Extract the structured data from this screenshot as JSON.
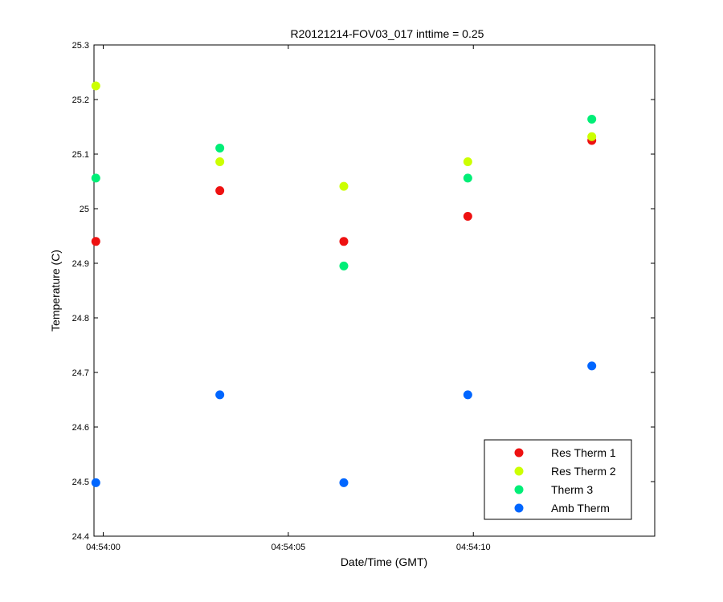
{
  "chart_data": {
    "type": "scatter",
    "title": "R20121214-FOV03_017 inttime = 0.25",
    "xlabel": "Date/Time (GMT)",
    "ylabel": "Temperature (C)",
    "xlim": [
      "04:53:59.75",
      "04:54:14.9"
    ],
    "ylim": [
      24.4,
      25.3
    ],
    "xticks": [
      {
        "value": "04:54:00",
        "label": "04:54:00"
      },
      {
        "value": "04:54:05",
        "label": "04:54:05"
      },
      {
        "value": "04:54:10",
        "label": "04:54:10"
      }
    ],
    "yticks": [
      {
        "value": 24.4,
        "label": "24.4"
      },
      {
        "value": 24.5,
        "label": "24.5"
      },
      {
        "value": 24.6,
        "label": "24.6"
      },
      {
        "value": 24.7,
        "label": "24.7"
      },
      {
        "value": 24.8,
        "label": "24.8"
      },
      {
        "value": 24.9,
        "label": "24.9"
      },
      {
        "value": 25.0,
        "label": "25"
      },
      {
        "value": 25.1,
        "label": "25.1"
      },
      {
        "value": 25.2,
        "label": "25.2"
      },
      {
        "value": 25.3,
        "label": "25.3"
      }
    ],
    "grid": false,
    "legend_position": "bottom-right",
    "x": [
      "04:53:59.8",
      "04:54:03.15",
      "04:54:06.5",
      "04:54:09.85",
      "04:54:13.2"
    ],
    "series": [
      {
        "name": "Res Therm 1",
        "color": "#ee1111",
        "values": [
          24.94,
          25.033,
          24.94,
          24.986,
          25.125
        ]
      },
      {
        "name": "Res Therm 2",
        "color": "#ccff00",
        "values": [
          25.225,
          25.086,
          25.041,
          25.086,
          25.132
        ]
      },
      {
        "name": "Therm 3",
        "color": "#00ee77",
        "values": [
          25.056,
          25.111,
          24.895,
          25.056,
          25.164
        ]
      },
      {
        "name": "Amb Therm",
        "color": "#0066ff",
        "values": [
          24.498,
          24.659,
          24.498,
          24.659,
          24.712
        ]
      }
    ]
  }
}
